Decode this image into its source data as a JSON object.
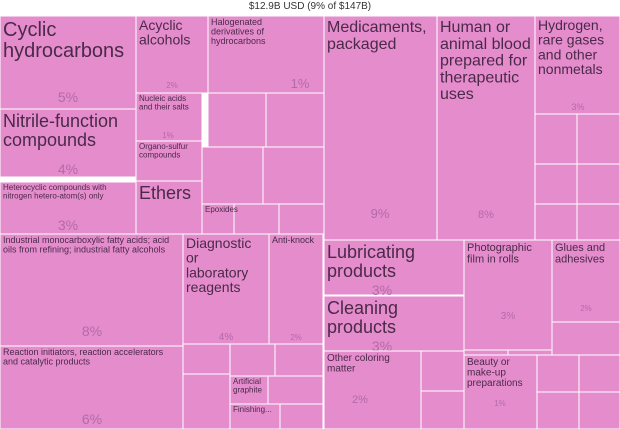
{
  "chart_data": {
    "type": "treemap",
    "title": "$12.9B USD (9% of $147B)",
    "fill_color": "#e58ccd",
    "border_color": "#ffffff",
    "label_color": "#4a2a48",
    "percent_color": "#b36aa8",
    "items": [
      {
        "label": "Cyclic hydrocarbons",
        "share": "5%"
      },
      {
        "label": "Acyclic alcohols",
        "share": "2%"
      },
      {
        "label": "Halogenated derivatives of hydrocarbons",
        "share": "1%"
      },
      {
        "label": "Nitrile-function compounds",
        "share": "4%"
      },
      {
        "label": "Nucleic acids and their salts",
        "share": "1%"
      },
      {
        "label": "Organo-sulfur compounds",
        "share": "1%"
      },
      {
        "label": "Heterocyclic compounds with nitrogen hetero-atom(s) only",
        "share": "3%"
      },
      {
        "label": "Ethers",
        "share": ""
      },
      {
        "label": "Epoxides",
        "share": ""
      },
      {
        "label": "Industrial monocarboxylic fatty acids; acid oils from refining; industrial fatty alcohols",
        "share": "8%"
      },
      {
        "label": "Diagnostic or laboratory reagents",
        "share": "4%"
      },
      {
        "label": "Anti-knock",
        "share": "2%"
      },
      {
        "label": "Reaction initiators, reaction accelerators and catalytic products",
        "share": "6%"
      },
      {
        "label": "Artificial graphite",
        "share": ""
      },
      {
        "label": "Finishing...",
        "share": ""
      },
      {
        "label": "Medicaments, packaged",
        "share": "9%"
      },
      {
        "label": "Human or animal blood prepared for therapeutic uses",
        "share": "8%"
      },
      {
        "label": "Hydrogen, rare gases and other nonmetals",
        "share": "3%"
      },
      {
        "label": "Lubricating products",
        "share": "3%"
      },
      {
        "label": "Cleaning products",
        "share": "3%"
      },
      {
        "label": "Photographic film in rolls",
        "share": "3%"
      },
      {
        "label": "Glues and adhesives",
        "share": "2%"
      },
      {
        "label": "Other coloring matter",
        "share": "2%"
      },
      {
        "label": "Beauty or make-up preparations",
        "share": "1%"
      }
    ]
  }
}
